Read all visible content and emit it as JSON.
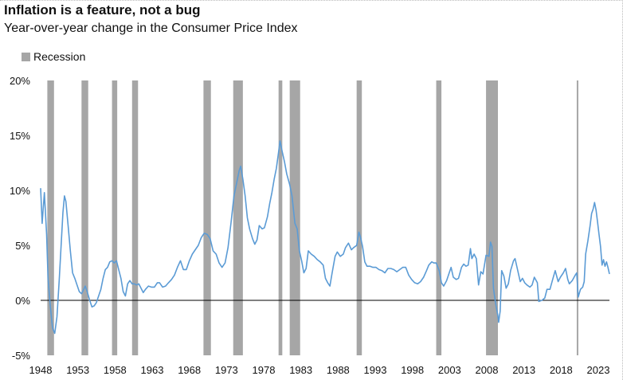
{
  "chart_data": {
    "type": "line",
    "title": "Inflation is a feature, not a bug",
    "subtitle": "Year-over-year change in the Consumer Price Index",
    "legend": [
      {
        "name": "Recession",
        "color": "#a6a6a6"
      }
    ],
    "xlim": [
      1948,
      2024.5
    ],
    "ylim": [
      -5,
      20
    ],
    "y_ticks": [
      -5,
      0,
      5,
      10,
      15,
      20
    ],
    "y_tick_labels": [
      "-5%",
      "0%",
      "5%",
      "10%",
      "15%",
      "20%"
    ],
    "x_ticks": [
      1948,
      1953,
      1958,
      1963,
      1968,
      1973,
      1978,
      1983,
      1988,
      1993,
      1998,
      2003,
      2008,
      2013,
      2018,
      2023
    ],
    "x_tick_labels": [
      "1948",
      "1953",
      "1958",
      "1963",
      "1968",
      "1973",
      "1978",
      "1983",
      "1988",
      "1993",
      "1998",
      "2003",
      "2008",
      "2013",
      "2018",
      "2023"
    ],
    "recessions": [
      [
        1948.9,
        1949.8
      ],
      [
        1953.5,
        1954.4
      ],
      [
        1957.6,
        1958.3
      ],
      [
        1960.3,
        1961.1
      ],
      [
        1969.9,
        1970.9
      ],
      [
        1973.9,
        1975.2
      ],
      [
        1980.0,
        1980.5
      ],
      [
        1981.5,
        1982.9
      ],
      [
        1990.5,
        1991.2
      ],
      [
        2001.2,
        2001.9
      ],
      [
        2007.9,
        2009.5
      ],
      [
        2020.1,
        2020.3
      ]
    ],
    "series": [
      {
        "color": "#5b9bd5",
        "points": [
          [
            1948.0,
            10.2
          ],
          [
            1948.2,
            7.0
          ],
          [
            1948.5,
            9.8
          ],
          [
            1948.8,
            6.0
          ],
          [
            1949.0,
            2.0
          ],
          [
            1949.3,
            -0.5
          ],
          [
            1949.6,
            -2.5
          ],
          [
            1949.9,
            -3.0
          ],
          [
            1950.2,
            -1.5
          ],
          [
            1950.5,
            1.8
          ],
          [
            1950.8,
            5.5
          ],
          [
            1951.0,
            8.0
          ],
          [
            1951.2,
            9.5
          ],
          [
            1951.4,
            9.0
          ],
          [
            1951.7,
            6.8
          ],
          [
            1952.0,
            4.5
          ],
          [
            1952.3,
            2.5
          ],
          [
            1952.6,
            2.0
          ],
          [
            1952.9,
            1.4
          ],
          [
            1953.2,
            0.8
          ],
          [
            1953.5,
            0.6
          ],
          [
            1953.8,
            1.0
          ],
          [
            1954.0,
            1.3
          ],
          [
            1954.3,
            0.7
          ],
          [
            1954.6,
            0.0
          ],
          [
            1954.9,
            -0.6
          ],
          [
            1955.2,
            -0.5
          ],
          [
            1955.5,
            -0.2
          ],
          [
            1955.8,
            0.4
          ],
          [
            1956.1,
            1.0
          ],
          [
            1956.4,
            2.0
          ],
          [
            1956.7,
            2.8
          ],
          [
            1957.0,
            3.0
          ],
          [
            1957.3,
            3.5
          ],
          [
            1957.6,
            3.6
          ],
          [
            1957.9,
            3.4
          ],
          [
            1958.2,
            3.6
          ],
          [
            1958.5,
            2.8
          ],
          [
            1958.8,
            2.0
          ],
          [
            1959.1,
            0.8
          ],
          [
            1959.4,
            0.4
          ],
          [
            1959.7,
            1.5
          ],
          [
            1960.0,
            1.8
          ],
          [
            1960.3,
            1.5
          ],
          [
            1960.6,
            1.5
          ],
          [
            1960.9,
            1.4
          ],
          [
            1961.2,
            1.5
          ],
          [
            1961.5,
            1.1
          ],
          [
            1961.8,
            0.7
          ],
          [
            1962.1,
            1.0
          ],
          [
            1962.5,
            1.3
          ],
          [
            1962.9,
            1.2
          ],
          [
            1963.3,
            1.2
          ],
          [
            1963.7,
            1.6
          ],
          [
            1964.0,
            1.6
          ],
          [
            1964.4,
            1.2
          ],
          [
            1964.8,
            1.3
          ],
          [
            1965.2,
            1.6
          ],
          [
            1965.6,
            1.9
          ],
          [
            1966.0,
            2.3
          ],
          [
            1966.4,
            3.0
          ],
          [
            1966.8,
            3.6
          ],
          [
            1967.2,
            2.8
          ],
          [
            1967.6,
            2.8
          ],
          [
            1968.0,
            3.6
          ],
          [
            1968.4,
            4.2
          ],
          [
            1968.8,
            4.6
          ],
          [
            1969.2,
            5.0
          ],
          [
            1969.6,
            5.7
          ],
          [
            1970.0,
            6.1
          ],
          [
            1970.4,
            6.0
          ],
          [
            1970.8,
            5.6
          ],
          [
            1971.2,
            4.5
          ],
          [
            1971.6,
            4.2
          ],
          [
            1972.0,
            3.4
          ],
          [
            1972.4,
            3.0
          ],
          [
            1972.8,
            3.4
          ],
          [
            1973.2,
            4.8
          ],
          [
            1973.6,
            7.0
          ],
          [
            1974.0,
            9.5
          ],
          [
            1974.4,
            10.8
          ],
          [
            1974.7,
            11.8
          ],
          [
            1974.9,
            12.2
          ],
          [
            1975.2,
            11.0
          ],
          [
            1975.5,
            9.5
          ],
          [
            1975.8,
            7.5
          ],
          [
            1976.1,
            6.5
          ],
          [
            1976.5,
            5.6
          ],
          [
            1976.8,
            5.1
          ],
          [
            1977.1,
            5.5
          ],
          [
            1977.4,
            6.8
          ],
          [
            1977.8,
            6.5
          ],
          [
            1978.1,
            6.6
          ],
          [
            1978.5,
            7.6
          ],
          [
            1978.8,
            8.8
          ],
          [
            1979.1,
            9.8
          ],
          [
            1979.4,
            11.0
          ],
          [
            1979.7,
            12.0
          ],
          [
            1980.0,
            13.5
          ],
          [
            1980.2,
            14.5
          ],
          [
            1980.5,
            13.5
          ],
          [
            1980.8,
            12.6
          ],
          [
            1981.1,
            11.5
          ],
          [
            1981.5,
            10.5
          ],
          [
            1981.8,
            9.5
          ],
          [
            1982.2,
            7.0
          ],
          [
            1982.5,
            6.5
          ],
          [
            1982.8,
            4.5
          ],
          [
            1983.1,
            3.6
          ],
          [
            1983.4,
            2.5
          ],
          [
            1983.7,
            2.9
          ],
          [
            1984.0,
            4.5
          ],
          [
            1984.4,
            4.2
          ],
          [
            1984.8,
            4.0
          ],
          [
            1985.2,
            3.7
          ],
          [
            1985.6,
            3.5
          ],
          [
            1986.0,
            3.2
          ],
          [
            1986.3,
            2.0
          ],
          [
            1986.6,
            1.6
          ],
          [
            1986.9,
            1.3
          ],
          [
            1987.2,
            2.5
          ],
          [
            1987.6,
            4.0
          ],
          [
            1987.9,
            4.4
          ],
          [
            1988.3,
            4.0
          ],
          [
            1988.7,
            4.2
          ],
          [
            1989.0,
            4.8
          ],
          [
            1989.4,
            5.2
          ],
          [
            1989.8,
            4.6
          ],
          [
            1990.1,
            4.8
          ],
          [
            1990.5,
            5.0
          ],
          [
            1990.8,
            6.2
          ],
          [
            1991.0,
            5.8
          ],
          [
            1991.3,
            4.9
          ],
          [
            1991.6,
            3.5
          ],
          [
            1991.9,
            3.1
          ],
          [
            1992.3,
            3.1
          ],
          [
            1992.7,
            3.0
          ],
          [
            1993.1,
            3.0
          ],
          [
            1993.5,
            2.8
          ],
          [
            1993.9,
            2.7
          ],
          [
            1994.3,
            2.5
          ],
          [
            1994.7,
            2.9
          ],
          [
            1995.1,
            2.9
          ],
          [
            1995.5,
            2.8
          ],
          [
            1995.9,
            2.6
          ],
          [
            1996.3,
            2.8
          ],
          [
            1996.7,
            3.0
          ],
          [
            1997.1,
            3.0
          ],
          [
            1997.5,
            2.3
          ],
          [
            1997.9,
            1.9
          ],
          [
            1998.3,
            1.6
          ],
          [
            1998.7,
            1.5
          ],
          [
            1999.1,
            1.7
          ],
          [
            1999.5,
            2.1
          ],
          [
            1999.9,
            2.7
          ],
          [
            2000.2,
            3.2
          ],
          [
            2000.6,
            3.5
          ],
          [
            2000.9,
            3.4
          ],
          [
            2001.2,
            3.4
          ],
          [
            2001.6,
            2.7
          ],
          [
            2001.9,
            1.6
          ],
          [
            2002.2,
            1.3
          ],
          [
            2002.6,
            1.8
          ],
          [
            2002.9,
            2.4
          ],
          [
            2003.2,
            3.0
          ],
          [
            2003.5,
            2.1
          ],
          [
            2003.9,
            1.9
          ],
          [
            2004.2,
            2.0
          ],
          [
            2004.6,
            3.0
          ],
          [
            2004.9,
            3.3
          ],
          [
            2005.2,
            3.1
          ],
          [
            2005.5,
            3.2
          ],
          [
            2005.8,
            4.7
          ],
          [
            2006.0,
            3.8
          ],
          [
            2006.3,
            4.2
          ],
          [
            2006.6,
            3.8
          ],
          [
            2006.9,
            1.4
          ],
          [
            2007.2,
            2.6
          ],
          [
            2007.5,
            2.4
          ],
          [
            2007.9,
            4.1
          ],
          [
            2008.3,
            4.0
          ],
          [
            2008.5,
            5.3
          ],
          [
            2008.7,
            4.9
          ],
          [
            2008.9,
            1.1
          ],
          [
            2009.1,
            0.1
          ],
          [
            2009.3,
            -0.7
          ],
          [
            2009.5,
            -1.4
          ],
          [
            2009.6,
            -2.0
          ],
          [
            2009.8,
            -1.0
          ],
          [
            2010.0,
            2.7
          ],
          [
            2010.3,
            2.2
          ],
          [
            2010.6,
            1.1
          ],
          [
            2010.9,
            1.5
          ],
          [
            2011.2,
            2.7
          ],
          [
            2011.6,
            3.6
          ],
          [
            2011.8,
            3.8
          ],
          [
            2012.1,
            2.9
          ],
          [
            2012.5,
            1.7
          ],
          [
            2012.8,
            2.0
          ],
          [
            2013.1,
            1.6
          ],
          [
            2013.4,
            1.4
          ],
          [
            2013.8,
            1.2
          ],
          [
            2014.1,
            1.4
          ],
          [
            2014.4,
            2.1
          ],
          [
            2014.8,
            1.6
          ],
          [
            2015.0,
            -0.1
          ],
          [
            2015.4,
            0.0
          ],
          [
            2015.8,
            0.2
          ],
          [
            2016.1,
            1.0
          ],
          [
            2016.5,
            1.0
          ],
          [
            2016.9,
            2.0
          ],
          [
            2017.2,
            2.7
          ],
          [
            2017.6,
            1.7
          ],
          [
            2017.9,
            2.1
          ],
          [
            2018.3,
            2.5
          ],
          [
            2018.6,
            2.9
          ],
          [
            2018.9,
            1.9
          ],
          [
            2019.1,
            1.5
          ],
          [
            2019.5,
            1.8
          ],
          [
            2019.9,
            2.3
          ],
          [
            2020.1,
            2.5
          ],
          [
            2020.3,
            0.3
          ],
          [
            2020.6,
            1.0
          ],
          [
            2020.9,
            1.2
          ],
          [
            2021.1,
            1.7
          ],
          [
            2021.3,
            4.2
          ],
          [
            2021.6,
            5.4
          ],
          [
            2021.9,
            6.8
          ],
          [
            2022.1,
            7.9
          ],
          [
            2022.3,
            8.3
          ],
          [
            2022.5,
            8.9
          ],
          [
            2022.7,
            8.2
          ],
          [
            2022.9,
            7.1
          ],
          [
            2023.1,
            6.0
          ],
          [
            2023.3,
            4.9
          ],
          [
            2023.5,
            3.2
          ],
          [
            2023.7,
            3.7
          ],
          [
            2023.9,
            3.1
          ],
          [
            2024.1,
            3.5
          ],
          [
            2024.3,
            3.0
          ],
          [
            2024.5,
            2.4
          ]
        ]
      }
    ]
  }
}
